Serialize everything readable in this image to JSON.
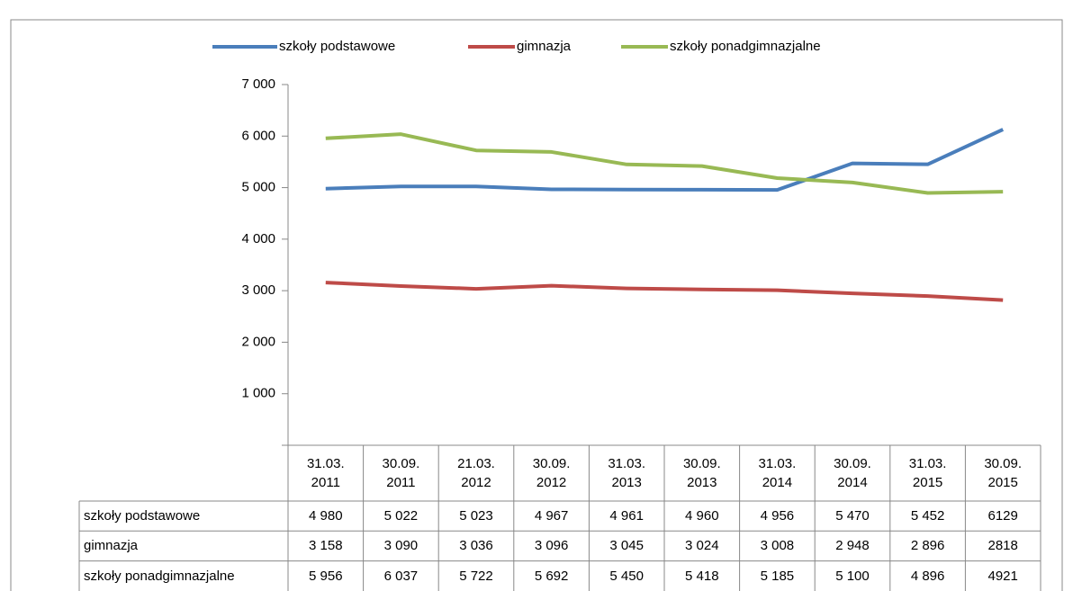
{
  "chart_data": {
    "type": "line",
    "categories": [
      "31.03. 2011",
      "30.09. 2011",
      "21.03. 2012",
      "30.09. 2012",
      "31.03. 2013",
      "30.09. 2013",
      "31.03. 2014",
      "30.09. 2014",
      "31.03. 2015",
      "30.09. 2015"
    ],
    "series": [
      {
        "name": "szkoły podstawowe",
        "color": "#4a7ebb",
        "values": [
          4980,
          5022,
          5023,
          4967,
          4961,
          4960,
          4956,
          5470,
          5452,
          6129
        ],
        "value_labels": [
          "4 980",
          "5 022",
          "5 023",
          "4 967",
          "4 961",
          "4 960",
          "4 956",
          "5 470",
          "5 452",
          "6129"
        ]
      },
      {
        "name": "gimnazja",
        "color": "#be4b48",
        "values": [
          3158,
          3090,
          3036,
          3096,
          3045,
          3024,
          3008,
          2948,
          2896,
          2818
        ],
        "value_labels": [
          "3 158",
          "3 090",
          "3 036",
          "3 096",
          "3 045",
          "3 024",
          "3 008",
          "2 948",
          "2 896",
          "2818"
        ]
      },
      {
        "name": "szkoły ponadgimnazjalne",
        "color": "#98b954",
        "values": [
          5956,
          6037,
          5722,
          5692,
          5450,
          5418,
          5185,
          5100,
          4896,
          4921
        ],
        "value_labels": [
          "5 956",
          "6 037",
          "5 722",
          "5 692",
          "5 450",
          "5 418",
          "5 185",
          "5 100",
          "4 896",
          "4921"
        ]
      }
    ],
    "ylim": [
      0,
      7000
    ],
    "yticks": [
      {
        "value": 1000,
        "label": "1 000"
      },
      {
        "value": 2000,
        "label": "2 000"
      },
      {
        "value": 3000,
        "label": "3 000"
      },
      {
        "value": 4000,
        "label": "4 000"
      },
      {
        "value": 5000,
        "label": "5 000"
      },
      {
        "value": 6000,
        "label": "6 000"
      },
      {
        "value": 7000,
        "label": "7 000"
      }
    ],
    "legend": "top",
    "grid": false
  }
}
